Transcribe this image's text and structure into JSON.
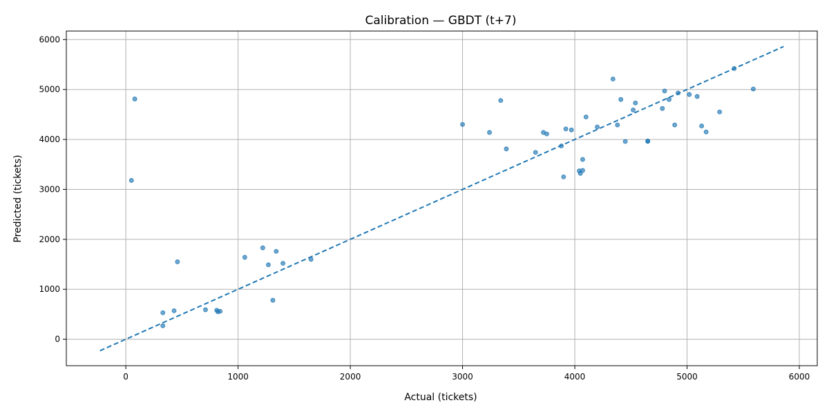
{
  "chart_data": {
    "type": "scatter",
    "title": "Calibration — GBDT (t+7)",
    "xlabel": "Actual (tickets)",
    "ylabel": "Predicted (tickets)",
    "xlim": [
      -530,
      6160
    ],
    "ylim": [
      -530,
      6170
    ],
    "xticks": [
      0,
      1000,
      2000,
      3000,
      4000,
      5000,
      6000
    ],
    "yticks": [
      0,
      1000,
      2000,
      3000,
      4000,
      5000,
      6000
    ],
    "grid": true,
    "colors": {
      "points": "#1f77b4",
      "reference_line": "#1f77b4",
      "grid": "#b0b0b0"
    },
    "reference_line": {
      "style": "dashed",
      "x": [
        -230,
        5860
      ],
      "y": [
        -230,
        5860
      ]
    },
    "points": [
      {
        "x": 80,
        "y": 4810
      },
      {
        "x": 50,
        "y": 3180
      },
      {
        "x": 460,
        "y": 1550
      },
      {
        "x": 330,
        "y": 530
      },
      {
        "x": 330,
        "y": 270
      },
      {
        "x": 430,
        "y": 570
      },
      {
        "x": 710,
        "y": 590
      },
      {
        "x": 810,
        "y": 580
      },
      {
        "x": 840,
        "y": 560
      },
      {
        "x": 820,
        "y": 550
      },
      {
        "x": 1060,
        "y": 1640
      },
      {
        "x": 1220,
        "y": 1830
      },
      {
        "x": 1340,
        "y": 1760
      },
      {
        "x": 1270,
        "y": 1490
      },
      {
        "x": 1400,
        "y": 1520
      },
      {
        "x": 1310,
        "y": 780
      },
      {
        "x": 1650,
        "y": 1600
      },
      {
        "x": 3000,
        "y": 4300
      },
      {
        "x": 3240,
        "y": 4140
      },
      {
        "x": 3340,
        "y": 4780
      },
      {
        "x": 3390,
        "y": 3810
      },
      {
        "x": 3650,
        "y": 3740
      },
      {
        "x": 3720,
        "y": 4140
      },
      {
        "x": 3750,
        "y": 4110
      },
      {
        "x": 3880,
        "y": 3870
      },
      {
        "x": 3920,
        "y": 4210
      },
      {
        "x": 3970,
        "y": 4190
      },
      {
        "x": 3900,
        "y": 3250
      },
      {
        "x": 4040,
        "y": 3370
      },
      {
        "x": 4050,
        "y": 3320
      },
      {
        "x": 4070,
        "y": 3380
      },
      {
        "x": 4070,
        "y": 3600
      },
      {
        "x": 4100,
        "y": 4450
      },
      {
        "x": 4200,
        "y": 4250
      },
      {
        "x": 4340,
        "y": 5210
      },
      {
        "x": 4380,
        "y": 4290
      },
      {
        "x": 4410,
        "y": 4800
      },
      {
        "x": 4450,
        "y": 3960
      },
      {
        "x": 4520,
        "y": 4590
      },
      {
        "x": 4540,
        "y": 4730
      },
      {
        "x": 4650,
        "y": 3960
      },
      {
        "x": 4650,
        "y": 3970
      },
      {
        "x": 4780,
        "y": 4620
      },
      {
        "x": 4800,
        "y": 4970
      },
      {
        "x": 4840,
        "y": 4800
      },
      {
        "x": 4890,
        "y": 4290
      },
      {
        "x": 4920,
        "y": 4930
      },
      {
        "x": 5020,
        "y": 4900
      },
      {
        "x": 5090,
        "y": 4860
      },
      {
        "x": 5130,
        "y": 4270
      },
      {
        "x": 5170,
        "y": 4150
      },
      {
        "x": 5290,
        "y": 4550
      },
      {
        "x": 5420,
        "y": 5420
      },
      {
        "x": 5590,
        "y": 5010
      }
    ]
  }
}
